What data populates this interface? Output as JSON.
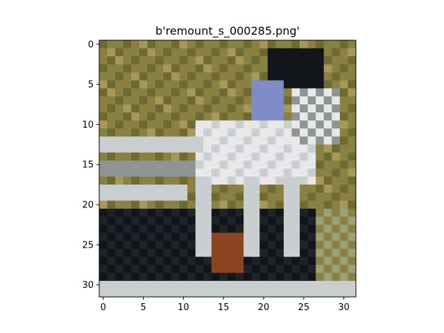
{
  "figure": {
    "title": "b'remount_s_000285.png'"
  },
  "image": {
    "description_tag": "pixelated-photo",
    "grid_size": [
      32,
      32
    ]
  },
  "axes": {
    "x_ticks": [
      "0",
      "5",
      "10",
      "15",
      "20",
      "25",
      "30"
    ],
    "y_ticks": [
      "0",
      "5",
      "10",
      "15",
      "20",
      "25",
      "30"
    ],
    "x_range": [
      -0.5,
      31.5
    ],
    "y_range": [
      -0.5,
      31.5
    ]
  },
  "palette": {
    "olive": "#8a8040",
    "olive_dark": "#6e6a34",
    "tan": "#a89858",
    "sage": "#9aa07a",
    "white_gray": "#e8e8ea",
    "light_gray": "#c9ced0",
    "gray": "#8e9494",
    "dark": "#1e2326",
    "near_black": "#12161a",
    "blue": "#7f8cc8",
    "rust": "#8c4322"
  }
}
